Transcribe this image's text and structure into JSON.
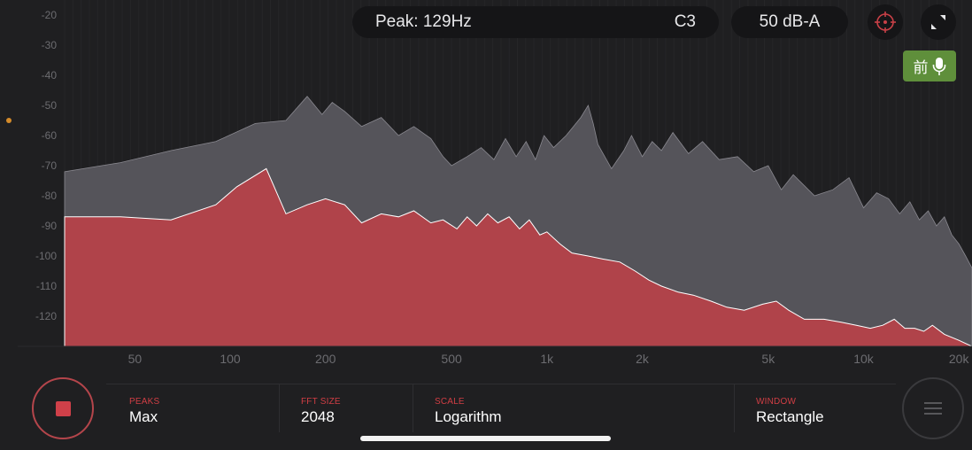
{
  "header": {
    "peak_text": "Peak: 129Hz",
    "note_text": "C3",
    "level_text": "50 dB-A"
  },
  "icons": {
    "target": "crosshair-icon",
    "expand": "expand-icon",
    "mic": "microphone-icon",
    "stop": "stop-icon",
    "menu": "hamburger-menu-icon"
  },
  "mic_badge": {
    "label": "前"
  },
  "colors": {
    "background": "#1f1f21",
    "current_fill": "#b0434a",
    "peak_fill": "#55545a",
    "accent": "#d13e44",
    "badge": "#5f8f3b"
  },
  "settings": [
    {
      "label": "PEAKS",
      "value": "Max"
    },
    {
      "label": "FFT SIZE",
      "value": "2048"
    },
    {
      "label": "SCALE",
      "value": "Logarithm"
    },
    {
      "label": "WINDOW",
      "value": "Rectangle"
    }
  ],
  "chart_data": {
    "type": "area",
    "x_scale": "log",
    "xlim": [
      30,
      22000
    ],
    "ylim": [
      -130,
      -15
    ],
    "y_ticks": [
      -20,
      -30,
      -40,
      -50,
      -60,
      -70,
      -80,
      -90,
      -100,
      -110,
      -120
    ],
    "y_tick_labels": [
      "-20",
      "-30",
      "-40",
      "-50",
      "-60",
      "-70",
      "-80",
      "-90",
      "-100",
      "-110",
      "-120"
    ],
    "x_ticks": [
      50,
      100,
      200,
      500,
      1000,
      2000,
      5000,
      10000,
      20000
    ],
    "x_tick_labels": [
      "50",
      "100",
      "200",
      "500",
      "1k",
      "2k",
      "5k",
      "10k",
      "20k"
    ],
    "series": [
      {
        "x": [
          30,
          45,
          65,
          90,
          120,
          150,
          175,
          195,
          210,
          230,
          260,
          300,
          340,
          380,
          430,
          470,
          500,
          560,
          620,
          680,
          740,
          800,
          860,
          920,
          980,
          1050,
          1150,
          1280,
          1350,
          1400,
          1450,
          1600,
          1750,
          1850,
          2000,
          2150,
          2300,
          2500,
          2800,
          3100,
          3500,
          4000,
          4500,
          5000,
          5500,
          6000,
          7000,
          8000,
          9000,
          10000,
          11000,
          12000,
          13000,
          14000,
          15000,
          16000,
          17000,
          18000,
          19000,
          20000,
          21000,
          22000
        ],
        "values": [
          -72,
          -69,
          -65,
          -62,
          -56,
          -55,
          -47,
          -53,
          -49,
          -52,
          -57,
          -54,
          -60,
          -57,
          -61,
          -67,
          -70,
          -67,
          -64,
          -68,
          -61,
          -67,
          -62,
          -68,
          -60,
          -64,
          -60,
          -54,
          -50,
          -56,
          -63,
          -71,
          -65,
          -60,
          -67,
          -62,
          -65,
          -59,
          -66,
          -62,
          -68,
          -67,
          -72,
          -70,
          -78,
          -73,
          -80,
          -78,
          -74,
          -84,
          -79,
          -81,
          -86,
          -82,
          -88,
          -85,
          -90,
          -87,
          -93,
          -96,
          -100,
          -104
        ]
      },
      {
        "x": [
          30,
          45,
          65,
          90,
          105,
          130,
          150,
          175,
          200,
          230,
          260,
          300,
          340,
          380,
          430,
          470,
          520,
          560,
          600,
          650,
          700,
          760,
          820,
          880,
          950,
          1000,
          1100,
          1200,
          1350,
          1500,
          1700,
          1900,
          2100,
          2300,
          2600,
          2900,
          3300,
          3700,
          4200,
          4800,
          5300,
          5800,
          6500,
          7500,
          8500,
          9500,
          10500,
          11500,
          12500,
          13500,
          14500,
          15500,
          16500,
          18000,
          20000,
          22000
        ],
        "values": [
          -87,
          -87,
          -88,
          -83,
          -77,
          -71,
          -86,
          -83,
          -81,
          -83,
          -89,
          -86,
          -87,
          -85,
          -89,
          -88,
          -91,
          -87,
          -90,
          -86,
          -89,
          -87,
          -91,
          -88,
          -93,
          -92,
          -96,
          -99,
          -100,
          -101,
          -102,
          -105,
          -108,
          -110,
          -112,
          -113,
          -115,
          -117,
          -118,
          -116,
          -115,
          -118,
          -121,
          -121,
          -122,
          -123,
          -124,
          -123,
          -121,
          -124,
          -124,
          -125,
          -123,
          -126,
          -128,
          -130
        ]
      }
    ]
  }
}
